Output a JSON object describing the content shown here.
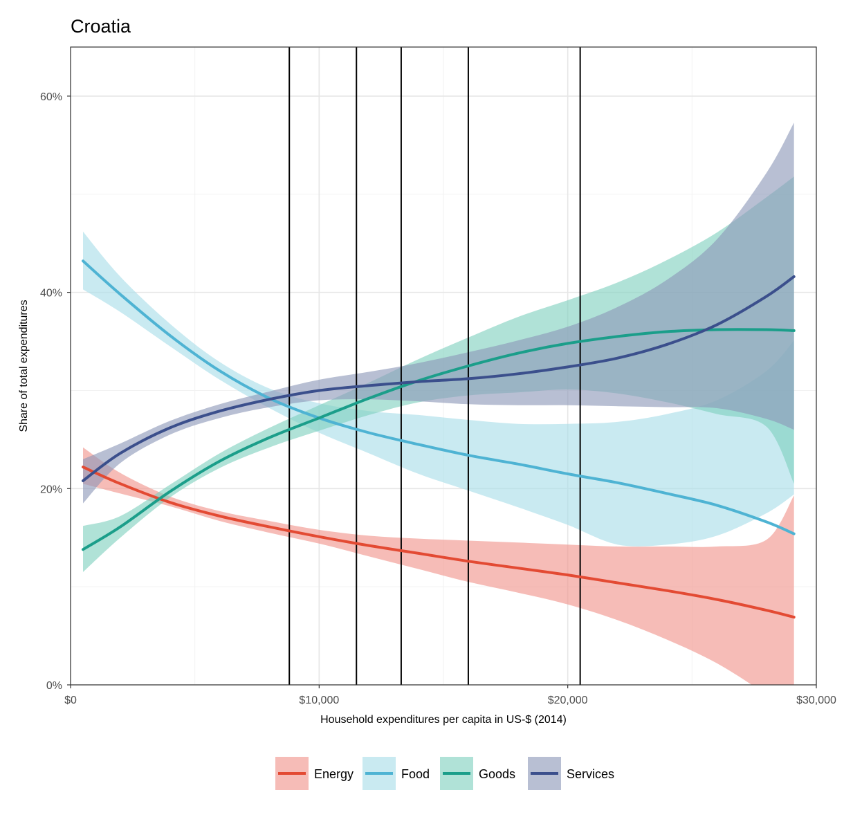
{
  "chart_data": {
    "type": "line",
    "title": "Croatia",
    "xlabel": "Household expenditures per capita in US-$ (2014)",
    "ylabel": "Share of total expenditures",
    "xlim": [
      0,
      30000
    ],
    "ylim": [
      0,
      0.65
    ],
    "x_ticks": [
      {
        "value": 0,
        "label": "$0"
      },
      {
        "value": 10000,
        "label": "$10,000"
      },
      {
        "value": 20000,
        "label": "$20,000"
      },
      {
        "value": 30000,
        "label": "$30,000"
      }
    ],
    "y_ticks": [
      {
        "value": 0,
        "label": "0%"
      },
      {
        "value": 0.2,
        "label": "20%"
      },
      {
        "value": 0.4,
        "label": "40%"
      },
      {
        "value": 0.6,
        "label": "60%"
      }
    ],
    "grid": true,
    "legend_position": "bottom",
    "vertical_lines": [
      8800,
      11500,
      13300,
      16000,
      20500
    ],
    "series": [
      {
        "name": "Energy",
        "color": "#e34a33",
        "band_color": "#f0938a",
        "points": [
          {
            "x": 500,
            "y": 0.222,
            "lo": 0.205,
            "hi": 0.242
          },
          {
            "x": 2000,
            "y": 0.205,
            "lo": 0.195,
            "hi": 0.216
          },
          {
            "x": 4000,
            "y": 0.186,
            "lo": 0.182,
            "hi": 0.192
          },
          {
            "x": 6000,
            "y": 0.172,
            "lo": 0.167,
            "hi": 0.177
          },
          {
            "x": 8000,
            "y": 0.161,
            "lo": 0.155,
            "hi": 0.167
          },
          {
            "x": 10000,
            "y": 0.151,
            "lo": 0.144,
            "hi": 0.158
          },
          {
            "x": 12000,
            "y": 0.142,
            "lo": 0.131,
            "hi": 0.152
          },
          {
            "x": 14000,
            "y": 0.134,
            "lo": 0.118,
            "hi": 0.149
          },
          {
            "x": 16000,
            "y": 0.126,
            "lo": 0.105,
            "hi": 0.147
          },
          {
            "x": 18000,
            "y": 0.119,
            "lo": 0.094,
            "hi": 0.145
          },
          {
            "x": 20000,
            "y": 0.112,
            "lo": 0.082,
            "hi": 0.143
          },
          {
            "x": 22000,
            "y": 0.104,
            "lo": 0.066,
            "hi": 0.141
          },
          {
            "x": 24000,
            "y": 0.096,
            "lo": 0.046,
            "hi": 0.141
          },
          {
            "x": 26000,
            "y": 0.087,
            "lo": 0.022,
            "hi": 0.141
          },
          {
            "x": 28000,
            "y": 0.076,
            "lo": -0.01,
            "hi": 0.148
          },
          {
            "x": 29100,
            "y": 0.069,
            "lo": -0.03,
            "hi": 0.193
          }
        ]
      },
      {
        "name": "Food",
        "color": "#4eb3d3",
        "band_color": "#a8dde9",
        "points": [
          {
            "x": 500,
            "y": 0.432,
            "lo": 0.403,
            "hi": 0.462
          },
          {
            "x": 2000,
            "y": 0.398,
            "lo": 0.38,
            "hi": 0.416
          },
          {
            "x": 4000,
            "y": 0.356,
            "lo": 0.345,
            "hi": 0.368
          },
          {
            "x": 6000,
            "y": 0.32,
            "lo": 0.311,
            "hi": 0.329
          },
          {
            "x": 8000,
            "y": 0.292,
            "lo": 0.282,
            "hi": 0.302
          },
          {
            "x": 10000,
            "y": 0.272,
            "lo": 0.257,
            "hi": 0.287
          },
          {
            "x": 12000,
            "y": 0.257,
            "lo": 0.236,
            "hi": 0.279
          },
          {
            "x": 14000,
            "y": 0.245,
            "lo": 0.215,
            "hi": 0.275
          },
          {
            "x": 16000,
            "y": 0.234,
            "lo": 0.198,
            "hi": 0.27
          },
          {
            "x": 18000,
            "y": 0.225,
            "lo": 0.181,
            "hi": 0.266
          },
          {
            "x": 20000,
            "y": 0.215,
            "lo": 0.163,
            "hi": 0.266
          },
          {
            "x": 22000,
            "y": 0.206,
            "lo": 0.143,
            "hi": 0.268
          },
          {
            "x": 24000,
            "y": 0.195,
            "lo": 0.143,
            "hi": 0.276
          },
          {
            "x": 26000,
            "y": 0.183,
            "lo": 0.152,
            "hi": 0.29
          },
          {
            "x": 28000,
            "y": 0.166,
            "lo": 0.175,
            "hi": 0.32
          },
          {
            "x": 29100,
            "y": 0.154,
            "lo": 0.194,
            "hi": 0.351
          }
        ]
      },
      {
        "name": "Goods",
        "color": "#1b9e8a",
        "band_color": "#7fd0be",
        "points": [
          {
            "x": 500,
            "y": 0.138,
            "lo": 0.115,
            "hi": 0.162
          },
          {
            "x": 2000,
            "y": 0.161,
            "lo": 0.15,
            "hi": 0.172
          },
          {
            "x": 4000,
            "y": 0.197,
            "lo": 0.191,
            "hi": 0.204
          },
          {
            "x": 6000,
            "y": 0.228,
            "lo": 0.221,
            "hi": 0.236
          },
          {
            "x": 8000,
            "y": 0.252,
            "lo": 0.242,
            "hi": 0.262
          },
          {
            "x": 10000,
            "y": 0.272,
            "lo": 0.259,
            "hi": 0.285
          },
          {
            "x": 12000,
            "y": 0.292,
            "lo": 0.275,
            "hi": 0.308
          },
          {
            "x": 14000,
            "y": 0.31,
            "lo": 0.288,
            "hi": 0.332
          },
          {
            "x": 16000,
            "y": 0.325,
            "lo": 0.295,
            "hi": 0.354
          },
          {
            "x": 18000,
            "y": 0.338,
            "lo": 0.298,
            "hi": 0.375
          },
          {
            "x": 20000,
            "y": 0.348,
            "lo": 0.301,
            "hi": 0.392
          },
          {
            "x": 22000,
            "y": 0.355,
            "lo": 0.297,
            "hi": 0.41
          },
          {
            "x": 24000,
            "y": 0.36,
            "lo": 0.288,
            "hi": 0.433
          },
          {
            "x": 26000,
            "y": 0.362,
            "lo": 0.276,
            "hi": 0.461
          },
          {
            "x": 28000,
            "y": 0.362,
            "lo": 0.263,
            "hi": 0.497
          },
          {
            "x": 29100,
            "y": 0.361,
            "lo": 0.205,
            "hi": 0.518
          }
        ]
      },
      {
        "name": "Services",
        "color": "#3b4f8c",
        "band_color": "#8d98b8",
        "points": [
          {
            "x": 500,
            "y": 0.208,
            "lo": 0.185,
            "hi": 0.23
          },
          {
            "x": 2000,
            "y": 0.236,
            "lo": 0.226,
            "hi": 0.246
          },
          {
            "x": 4000,
            "y": 0.262,
            "lo": 0.255,
            "hi": 0.269
          },
          {
            "x": 6000,
            "y": 0.279,
            "lo": 0.272,
            "hi": 0.286
          },
          {
            "x": 8000,
            "y": 0.291,
            "lo": 0.283,
            "hi": 0.299
          },
          {
            "x": 10000,
            "y": 0.3,
            "lo": 0.29,
            "hi": 0.311
          },
          {
            "x": 12000,
            "y": 0.305,
            "lo": 0.291,
            "hi": 0.319
          },
          {
            "x": 14000,
            "y": 0.309,
            "lo": 0.289,
            "hi": 0.328
          },
          {
            "x": 16000,
            "y": 0.312,
            "lo": 0.286,
            "hi": 0.339
          },
          {
            "x": 18000,
            "y": 0.317,
            "lo": 0.285,
            "hi": 0.351
          },
          {
            "x": 20000,
            "y": 0.324,
            "lo": 0.285,
            "hi": 0.365
          },
          {
            "x": 22000,
            "y": 0.333,
            "lo": 0.284,
            "hi": 0.385
          },
          {
            "x": 24000,
            "y": 0.347,
            "lo": 0.283,
            "hi": 0.413
          },
          {
            "x": 26000,
            "y": 0.367,
            "lo": 0.282,
            "hi": 0.454
          },
          {
            "x": 28000,
            "y": 0.396,
            "lo": 0.271,
            "hi": 0.522
          },
          {
            "x": 29100,
            "y": 0.416,
            "lo": 0.26,
            "hi": 0.573
          }
        ]
      }
    ]
  }
}
